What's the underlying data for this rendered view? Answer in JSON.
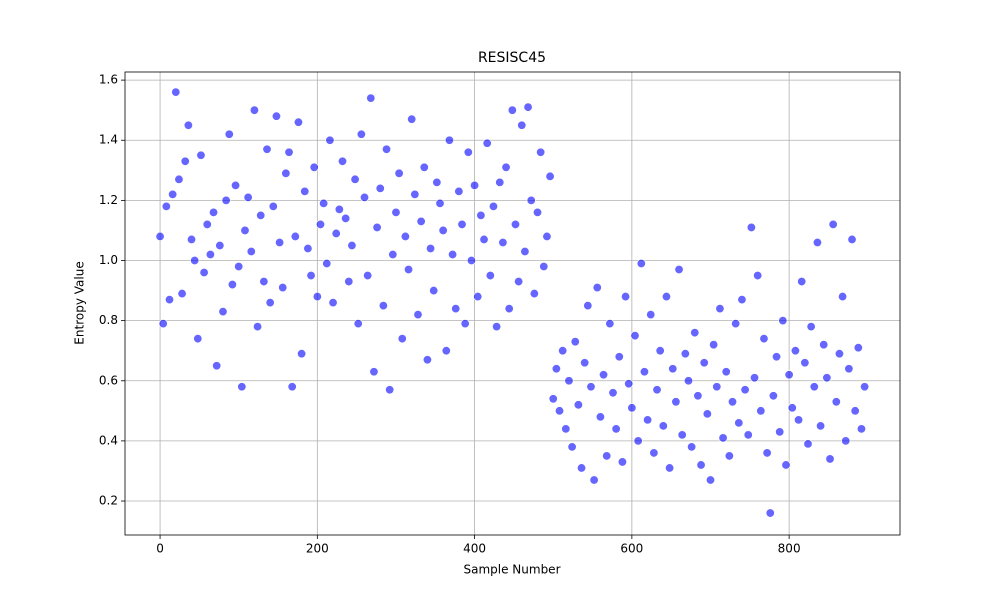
{
  "chart_data": {
    "type": "scatter",
    "title": "RESISC45",
    "xlabel": "Sample Number",
    "ylabel": "Entropy Value",
    "color": "#0000ff",
    "grid": true,
    "xlim": [
      -44.6,
      941
    ],
    "ylim": [
      0.087,
      1.627
    ],
    "xticks": [
      0,
      200,
      400,
      600,
      800
    ],
    "yticks": [
      0.2,
      0.4,
      0.6,
      0.8,
      {
        "value": 1,
        "label": "1.0"
      },
      1.2,
      1.4,
      1.6
    ],
    "x": [
      0,
      4,
      8,
      12,
      16,
      20,
      24,
      28,
      32,
      36,
      40,
      44,
      48,
      52,
      56,
      60,
      64,
      68,
      72,
      76,
      80,
      84,
      88,
      92,
      96,
      100,
      104,
      108,
      112,
      116,
      120,
      124,
      128,
      132,
      136,
      140,
      144,
      148,
      152,
      156,
      160,
      164,
      168,
      172,
      176,
      180,
      184,
      188,
      192,
      196,
      200,
      204,
      208,
      212,
      216,
      220,
      224,
      228,
      232,
      236,
      240,
      244,
      248,
      252,
      256,
      260,
      264,
      268,
      272,
      276,
      280,
      284,
      288,
      292,
      296,
      300,
      304,
      308,
      312,
      316,
      320,
      324,
      328,
      332,
      336,
      340,
      344,
      348,
      352,
      356,
      360,
      364,
      368,
      372,
      376,
      380,
      384,
      388,
      392,
      396,
      400,
      404,
      408,
      412,
      416,
      420,
      424,
      428,
      432,
      436,
      440,
      444,
      448,
      452,
      456,
      460,
      464,
      468,
      472,
      476,
      480,
      484,
      488,
      492,
      496,
      500,
      504,
      508,
      512,
      516,
      520,
      524,
      528,
      532,
      536,
      540,
      544,
      548,
      552,
      556,
      560,
      564,
      568,
      572,
      576,
      580,
      584,
      588,
      592,
      596,
      600,
      604,
      608,
      612,
      616,
      620,
      624,
      628,
      632,
      636,
      640,
      644,
      648,
      652,
      656,
      660,
      664,
      668,
      672,
      676,
      680,
      684,
      688,
      692,
      696,
      700,
      704,
      708,
      712,
      716,
      720,
      724,
      728,
      732,
      736,
      740,
      744,
      748,
      752,
      756,
      760,
      764,
      768,
      772,
      776,
      780,
      784,
      788,
      792,
      796,
      800,
      804,
      808,
      812,
      816,
      820,
      824,
      828,
      832,
      836,
      840,
      844,
      848,
      852,
      856,
      860,
      864,
      868,
      872,
      876,
      880,
      884,
      888,
      892,
      896
    ],
    "values": [
      1.08,
      0.79,
      1.18,
      0.87,
      1.22,
      1.56,
      1.27,
      0.89,
      1.33,
      1.45,
      1.07,
      1.0,
      0.74,
      1.35,
      0.96,
      1.12,
      1.02,
      1.16,
      0.65,
      1.05,
      0.83,
      1.2,
      1.42,
      0.92,
      1.25,
      0.98,
      0.58,
      1.1,
      1.21,
      1.03,
      1.5,
      0.78,
      1.15,
      0.93,
      1.37,
      0.86,
      1.18,
      1.48,
      1.06,
      0.91,
      1.29,
      1.36,
      0.58,
      1.08,
      1.46,
      0.69,
      1.23,
      1.04,
      0.95,
      1.31,
      0.88,
      1.12,
      1.19,
      0.99,
      1.4,
      0.86,
      1.09,
      1.17,
      1.33,
      1.14,
      0.93,
      1.05,
      1.27,
      0.79,
      1.42,
      1.21,
      0.95,
      1.54,
      0.63,
      1.11,
      1.24,
      0.85,
      1.37,
      0.57,
      1.02,
      1.16,
      1.29,
      0.74,
      1.08,
      0.97,
      1.47,
      1.22,
      0.82,
      1.13,
      1.31,
      0.67,
      1.04,
      0.9,
      1.26,
      1.19,
      1.1,
      0.7,
      1.4,
      1.02,
      0.84,
      1.23,
      1.12,
      0.79,
      1.36,
      1.0,
      1.25,
      0.88,
      1.15,
      1.07,
      1.39,
      0.95,
      1.18,
      0.78,
      1.26,
      1.06,
      1.31,
      0.84,
      1.5,
      1.12,
      0.93,
      1.45,
      1.03,
      1.51,
      1.2,
      0.89,
      1.16,
      1.36,
      0.98,
      1.08,
      1.28,
      0.54,
      0.64,
      0.5,
      0.7,
      0.44,
      0.6,
      0.38,
      0.73,
      0.52,
      0.31,
      0.66,
      0.85,
      0.58,
      0.27,
      0.91,
      0.48,
      0.62,
      0.35,
      0.79,
      0.56,
      0.44,
      0.68,
      0.33,
      0.88,
      0.59,
      0.51,
      0.75,
      0.4,
      0.99,
      0.63,
      0.47,
      0.82,
      0.36,
      0.57,
      0.7,
      0.45,
      0.88,
      0.31,
      0.64,
      0.53,
      0.97,
      0.42,
      0.69,
      0.6,
      0.38,
      0.76,
      0.55,
      0.32,
      0.66,
      0.49,
      0.27,
      0.72,
      0.58,
      0.84,
      0.41,
      0.63,
      0.35,
      0.53,
      0.79,
      0.46,
      0.87,
      0.57,
      0.42,
      1.11,
      0.61,
      0.95,
      0.5,
      0.74,
      0.36,
      0.16,
      0.55,
      0.68,
      0.43,
      0.8,
      0.32,
      0.62,
      0.51,
      0.7,
      0.47,
      0.93,
      0.66,
      0.39,
      0.78,
      0.58,
      1.06,
      0.45,
      0.72,
      0.61,
      0.34,
      1.12,
      0.53,
      0.69,
      0.88,
      0.4,
      0.64,
      1.07,
      0.5,
      0.71,
      0.44,
      0.58
    ]
  }
}
